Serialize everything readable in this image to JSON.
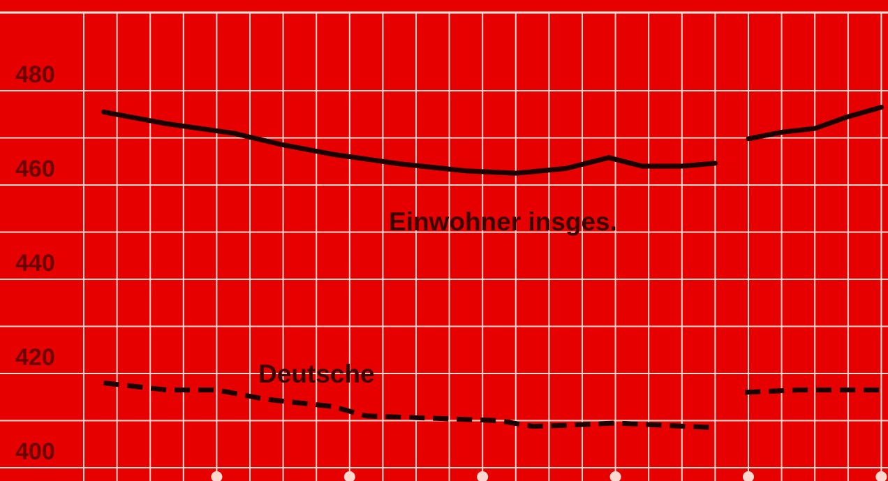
{
  "chart_data": {
    "type": "line",
    "title": "",
    "xlabel": "",
    "ylabel": "",
    "ylim": [
      400,
      480
    ],
    "y_ticks": [
      "400",
      "420",
      "440",
      "460",
      "480"
    ],
    "x_range": [
      0,
      24
    ],
    "grid": true,
    "line_color": "#1a0000",
    "background_color": "#e60000",
    "series": [
      {
        "name": "Einwohner insges.",
        "style": "solid",
        "segments": [
          [
            [
              0.6,
              475.5
            ],
            [
              2.5,
              473
            ],
            [
              4.5,
              471
            ],
            [
              6,
              468.5
            ],
            [
              7.5,
              466.5
            ],
            [
              9.5,
              464.5
            ],
            [
              11.5,
              463
            ],
            [
              13,
              462.5
            ],
            [
              14.5,
              463.5
            ],
            [
              15.8,
              465.8
            ],
            [
              16.8,
              464
            ],
            [
              18,
              464
            ],
            [
              19,
              464.6
            ]
          ],
          [
            [
              20,
              469.8
            ],
            [
              21,
              471.2
            ],
            [
              22,
              472
            ],
            [
              23,
              474.5
            ],
            [
              24,
              476.5
            ]
          ]
        ]
      },
      {
        "name": "Deutsche",
        "style": "dashed",
        "segments": [
          [
            [
              0.6,
              418
            ],
            [
              2.5,
              416.5
            ],
            [
              4,
              416.5
            ],
            [
              5.5,
              414.5
            ],
            [
              7.5,
              413
            ],
            [
              8.5,
              411
            ],
            [
              10.5,
              410.5
            ],
            [
              12.5,
              410
            ],
            [
              13.5,
              408.8
            ],
            [
              14.5,
              409
            ],
            [
              16,
              409.5
            ],
            [
              17.5,
              409
            ],
            [
              19,
              408.5
            ]
          ],
          [
            [
              19.9,
              416
            ],
            [
              21.5,
              416.5
            ],
            [
              24,
              416.5
            ]
          ]
        ]
      }
    ]
  }
}
